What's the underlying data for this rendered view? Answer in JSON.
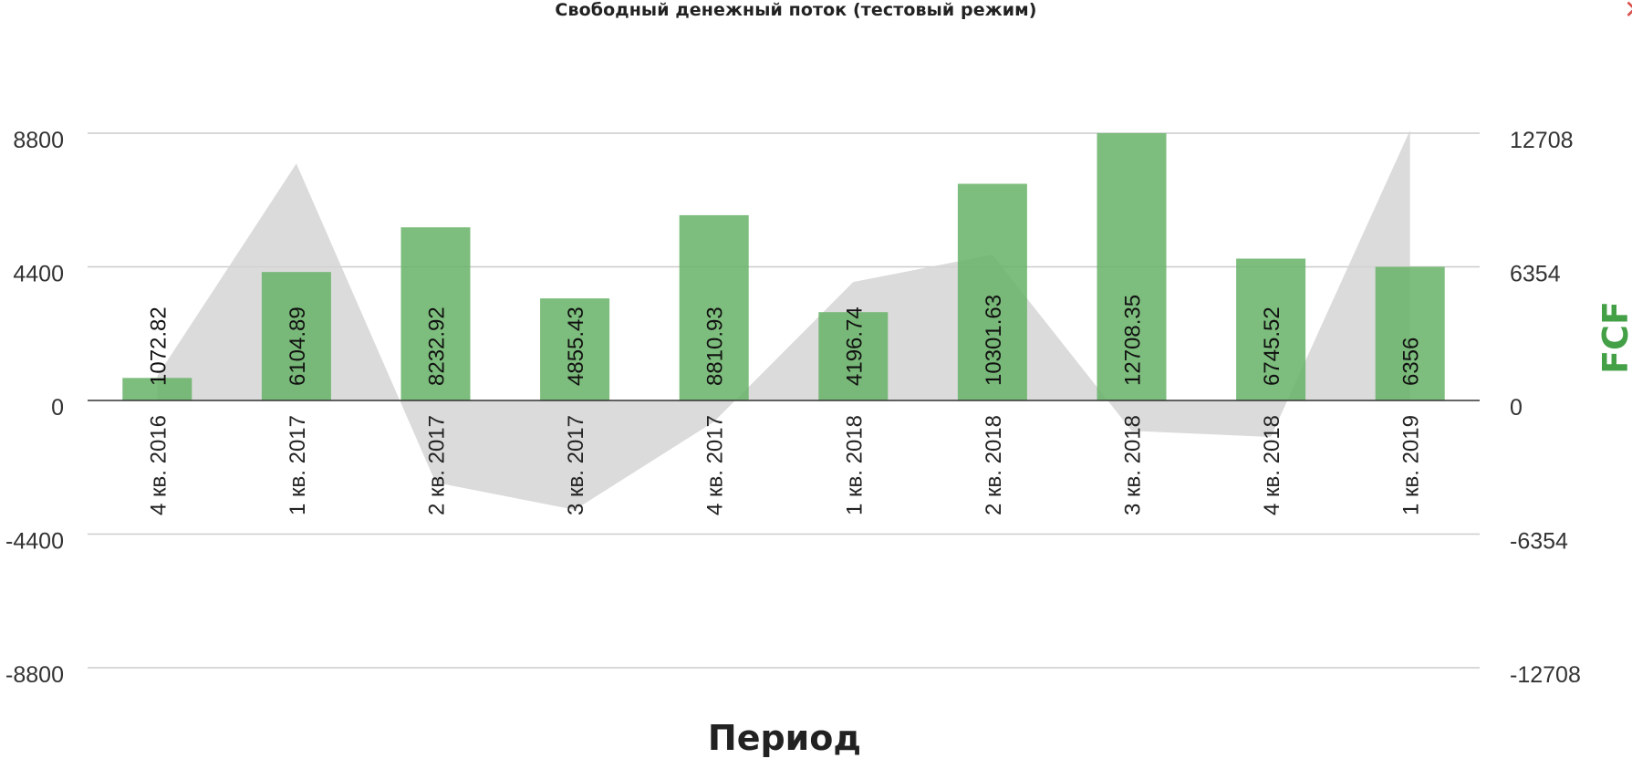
{
  "header": {
    "title": "Свободный денежный поток (тестовый режим)",
    "close_symbol": "✕"
  },
  "colors": {
    "bar": "#66b266",
    "area": "#d3d3d3",
    "grid": "#cccccc",
    "axis": "#333333",
    "y2_title": "#43a047",
    "close": "#d9534f"
  },
  "chart_data": {
    "type": "bar",
    "title": "Свободный денежный поток (тестовый режим)",
    "xlabel": "Период",
    "ylabel": "",
    "y2label": "FCF",
    "categories": [
      "4 кв. 2016",
      "1 кв. 2017",
      "2 кв. 2017",
      "3 кв. 2017",
      "4 кв. 2017",
      "1 кв. 2018",
      "2 кв. 2018",
      "3 кв. 2018",
      "4 кв. 2018",
      "1 кв. 2019"
    ],
    "ylim": [
      -8800,
      8800
    ],
    "yticks": [
      8800,
      4400,
      0,
      -4400,
      -8800
    ],
    "y2lim": [
      -12708,
      12708
    ],
    "y2ticks": [
      12708,
      6354,
      0,
      -6354,
      -12708
    ],
    "grid": true,
    "series": [
      {
        "name": "FCF",
        "type": "bar",
        "axis": "right",
        "values": [
          1072.82,
          6104.89,
          8232.92,
          4855.43,
          8810.93,
          4196.74,
          10301.63,
          12708.35,
          6745.52,
          6356
        ],
        "labels": [
          "1072.82",
          "6104.89",
          "8232.92",
          "4855.43",
          "8810.93",
          "4196.74",
          "10301.63",
          "12708.35",
          "6745.52",
          "6356"
        ]
      },
      {
        "type": "area",
        "axis": "left",
        "values": [
          800,
          7800,
          -2700,
          -3600,
          -700,
          3900,
          4800,
          -1000,
          -1200,
          8900
        ]
      }
    ]
  }
}
